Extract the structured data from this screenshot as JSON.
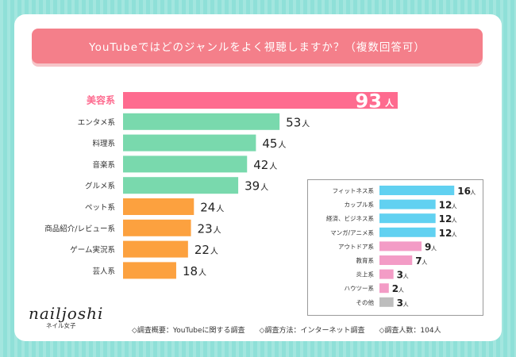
{
  "chart_data": [
    {
      "type": "bar",
      "orientation": "horizontal",
      "title": "YouTubeではどのジャンルをよく視聴しますか？（複数回答可）",
      "unit": "人",
      "categories": [
        "美容系",
        "エンタメ系",
        "料理系",
        "音楽系",
        "グルメ系",
        "ペット系",
        "商品紹介/レビュー系",
        "ゲーム実況系",
        "芸人系"
      ],
      "values": [
        93,
        53,
        45,
        42,
        39,
        24,
        23,
        22,
        18
      ],
      "colors": [
        "#fe6b8f",
        "#79d9ad",
        "#79d9ad",
        "#79d9ad",
        "#79d9ad",
        "#fca13f",
        "#fca13f",
        "#fca13f",
        "#fca13f"
      ],
      "highlight_label_color": "#fe6b8f",
      "xlim": [
        0,
        100
      ]
    },
    {
      "type": "bar",
      "orientation": "horizontal",
      "unit": "人",
      "categories": [
        "フィットネス系",
        "カップル系",
        "経済、ビジネス系",
        "マンガ/アニメ系",
        "アウトドア系",
        "教育系",
        "炎上系",
        "ハウツー系",
        "その他"
      ],
      "values": [
        16,
        12,
        12,
        12,
        9,
        7,
        3,
        2,
        3
      ],
      "colors": [
        "#61d1f1",
        "#61d1f1",
        "#61d1f1",
        "#61d1f1",
        "#f39cc6",
        "#f39cc6",
        "#f39cc6",
        "#f39cc6",
        "#bdbdbd"
      ],
      "xlim": [
        0,
        18
      ]
    }
  ],
  "title": "YouTubeではどのジャンルをよく視聴しますか？（複数回答可）",
  "logo": {
    "main": "nailjoshi",
    "sub": "ネイル女子"
  },
  "footer": {
    "overview": "◇調査概要：YouTubeに関する調査",
    "method": "◇調査方法：インターネット調査",
    "count": "◇調査人数：104人"
  },
  "colors": {
    "background": "#8fe0d8",
    "title_bar": "#f47f8a"
  }
}
